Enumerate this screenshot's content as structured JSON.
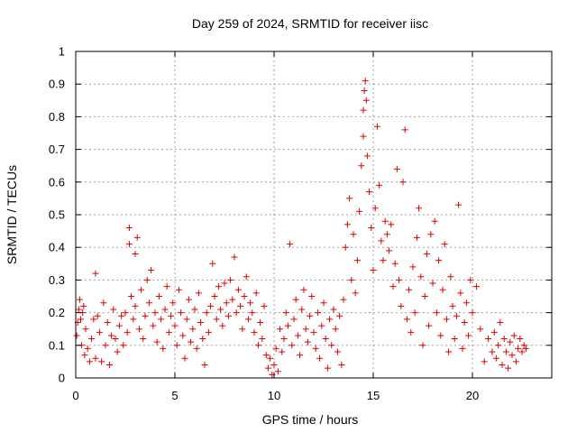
{
  "chart_data": {
    "type": "scatter",
    "title": "Day 259 of 2024, SRMTID for receiver iisc",
    "xlabel": "GPS time / hours",
    "ylabel": "SRMTID / TECUs",
    "xlim": [
      0,
      24
    ],
    "ylim": [
      0,
      1
    ],
    "xticks": [
      0,
      5,
      10,
      15,
      20
    ],
    "xtick_labels": [
      "0",
      "5",
      "10",
      "15",
      "20"
    ],
    "yticks": [
      0,
      0.1,
      0.2,
      0.3,
      0.4,
      0.5,
      0.6,
      0.7,
      0.8,
      0.9,
      1
    ],
    "ytick_labels": [
      "0",
      "0.1",
      "0.2",
      "0.3",
      "0.4",
      "0.5",
      "0.6",
      "0.7",
      "0.8",
      "0.9",
      "1"
    ],
    "grid": true,
    "marker": "plus",
    "marker_color": "#e00000",
    "series": [
      {
        "name": "SRMTID",
        "points": [
          [
            0.05,
            0.13
          ],
          [
            0.1,
            0.17
          ],
          [
            0.15,
            0.21
          ],
          [
            0.2,
            0.24
          ],
          [
            0.25,
            0.18
          ],
          [
            0.3,
            0.1
          ],
          [
            0.35,
            0.2
          ],
          [
            0.4,
            0.22
          ],
          [
            0.45,
            0.07
          ],
          [
            0.5,
            0.15
          ],
          [
            0.6,
            0.09
          ],
          [
            0.7,
            0.05
          ],
          [
            0.8,
            0.12
          ],
          [
            0.9,
            0.18
          ],
          [
            1.0,
            0.06
          ],
          [
            1.0,
            0.32
          ],
          [
            1.1,
            0.19
          ],
          [
            1.2,
            0.14
          ],
          [
            1.3,
            0.05
          ],
          [
            1.4,
            0.23
          ],
          [
            1.5,
            0.1
          ],
          [
            1.6,
            0.17
          ],
          [
            1.7,
            0.04
          ],
          [
            1.8,
            0.13
          ],
          [
            1.9,
            0.21
          ],
          [
            2.0,
            0.12
          ],
          [
            2.1,
            0.08
          ],
          [
            2.2,
            0.16
          ],
          [
            2.3,
            0.19
          ],
          [
            2.4,
            0.1
          ],
          [
            2.5,
            0.2
          ],
          [
            2.6,
            0.14
          ],
          [
            2.7,
            0.46
          ],
          [
            2.7,
            0.41
          ],
          [
            2.8,
            0.25
          ],
          [
            2.9,
            0.18
          ],
          [
            3.0,
            0.22
          ],
          [
            3.0,
            0.38
          ],
          [
            3.1,
            0.43
          ],
          [
            3.2,
            0.15
          ],
          [
            3.3,
            0.27
          ],
          [
            3.4,
            0.12
          ],
          [
            3.5,
            0.19
          ],
          [
            3.6,
            0.3
          ],
          [
            3.7,
            0.23
          ],
          [
            3.8,
            0.33
          ],
          [
            3.9,
            0.16
          ],
          [
            4.0,
            0.2
          ],
          [
            4.1,
            0.11
          ],
          [
            4.2,
            0.25
          ],
          [
            4.3,
            0.18
          ],
          [
            4.4,
            0.09
          ],
          [
            4.5,
            0.21
          ],
          [
            4.6,
            0.28
          ],
          [
            4.7,
            0.14
          ],
          [
            4.8,
            0.19
          ],
          [
            4.9,
            0.23
          ],
          [
            5.0,
            0.16
          ],
          [
            5.1,
            0.1
          ],
          [
            5.2,
            0.27
          ],
          [
            5.3,
            0.2
          ],
          [
            5.4,
            0.13
          ],
          [
            5.5,
            0.06
          ],
          [
            5.6,
            0.18
          ],
          [
            5.7,
            0.24
          ],
          [
            5.8,
            0.11
          ],
          [
            5.9,
            0.15
          ],
          [
            6.0,
            0.21
          ],
          [
            6.1,
            0.09
          ],
          [
            6.2,
            0.26
          ],
          [
            6.3,
            0.17
          ],
          [
            6.4,
            0.12
          ],
          [
            6.5,
            0.04
          ],
          [
            6.6,
            0.2
          ],
          [
            6.7,
            0.14
          ],
          [
            6.8,
            0.22
          ],
          [
            6.9,
            0.35
          ],
          [
            7.0,
            0.25
          ],
          [
            7.1,
            0.18
          ],
          [
            7.2,
            0.28
          ],
          [
            7.3,
            0.21
          ],
          [
            7.4,
            0.16
          ],
          [
            7.5,
            0.29
          ],
          [
            7.6,
            0.23
          ],
          [
            7.7,
            0.19
          ],
          [
            7.8,
            0.3
          ],
          [
            7.9,
            0.24
          ],
          [
            8.0,
            0.37
          ],
          [
            8.1,
            0.2
          ],
          [
            8.2,
            0.27
          ],
          [
            8.3,
            0.22
          ],
          [
            8.4,
            0.15
          ],
          [
            8.5,
            0.25
          ],
          [
            8.6,
            0.31
          ],
          [
            8.7,
            0.18
          ],
          [
            8.8,
            0.23
          ],
          [
            8.9,
            0.2
          ],
          [
            9.0,
            0.14
          ],
          [
            9.1,
            0.26
          ],
          [
            9.2,
            0.1
          ],
          [
            9.3,
            0.17
          ],
          [
            9.4,
            0.12
          ],
          [
            9.5,
            0.22
          ],
          [
            9.6,
            0.07
          ],
          [
            9.7,
            0.03
          ],
          [
            9.8,
            0.06
          ],
          [
            9.9,
            0.01
          ],
          [
            10.0,
            0.04
          ],
          [
            10.1,
            0.09
          ],
          [
            10.2,
            0.02
          ],
          [
            10.3,
            0.15
          ],
          [
            10.4,
            0.08
          ],
          [
            10.5,
            0.12
          ],
          [
            10.6,
            0.2
          ],
          [
            10.7,
            0.16
          ],
          [
            10.8,
            0.41
          ],
          [
            10.9,
            0.1
          ],
          [
            11.0,
            0.18
          ],
          [
            11.1,
            0.24
          ],
          [
            11.2,
            0.13
          ],
          [
            11.3,
            0.07
          ],
          [
            11.4,
            0.21
          ],
          [
            11.5,
            0.27
          ],
          [
            11.6,
            0.15
          ],
          [
            11.7,
            0.11
          ],
          [
            11.8,
            0.19
          ],
          [
            11.9,
            0.25
          ],
          [
            12.0,
            0.14
          ],
          [
            12.1,
            0.09
          ],
          [
            12.2,
            0.2
          ],
          [
            12.3,
            0.06
          ],
          [
            12.4,
            0.16
          ],
          [
            12.5,
            0.23
          ],
          [
            12.6,
            0.12
          ],
          [
            12.7,
            0.03
          ],
          [
            12.8,
            0.18
          ],
          [
            12.9,
            0.1
          ],
          [
            13.0,
            0.21
          ],
          [
            13.1,
            0.15
          ],
          [
            13.2,
            0.08
          ],
          [
            13.3,
            0.19
          ],
          [
            13.4,
            0.04
          ],
          [
            13.5,
            0.24
          ],
          [
            13.6,
            0.4
          ],
          [
            13.7,
            0.47
          ],
          [
            13.8,
            0.55
          ],
          [
            13.9,
            0.3
          ],
          [
            14.0,
            0.44
          ],
          [
            14.1,
            0.26
          ],
          [
            14.2,
            0.36
          ],
          [
            14.3,
            0.51
          ],
          [
            14.4,
            0.65
          ],
          [
            14.5,
            0.74
          ],
          [
            14.5,
            0.82
          ],
          [
            14.55,
            0.88
          ],
          [
            14.6,
            0.91
          ],
          [
            14.65,
            0.85
          ],
          [
            14.7,
            0.68
          ],
          [
            14.8,
            0.57
          ],
          [
            14.9,
            0.46
          ],
          [
            15.0,
            0.33
          ],
          [
            15.1,
            0.52
          ],
          [
            15.2,
            0.77
          ],
          [
            15.3,
            0.59
          ],
          [
            15.4,
            0.42
          ],
          [
            15.5,
            0.36
          ],
          [
            15.6,
            0.48
          ],
          [
            15.7,
            0.44
          ],
          [
            15.8,
            0.39
          ],
          [
            15.9,
            0.47
          ],
          [
            16.0,
            0.28
          ],
          [
            16.1,
            0.35
          ],
          [
            16.2,
            0.64
          ],
          [
            16.3,
            0.3
          ],
          [
            16.4,
            0.22
          ],
          [
            16.5,
            0.6
          ],
          [
            16.6,
            0.76
          ],
          [
            16.7,
            0.18
          ],
          [
            16.8,
            0.27
          ],
          [
            16.9,
            0.14
          ],
          [
            17.0,
            0.34
          ],
          [
            17.1,
            0.2
          ],
          [
            17.2,
            0.43
          ],
          [
            17.3,
            0.52
          ],
          [
            17.4,
            0.31
          ],
          [
            17.5,
            0.1
          ],
          [
            17.6,
            0.25
          ],
          [
            17.7,
            0.38
          ],
          [
            17.8,
            0.16
          ],
          [
            17.9,
            0.44
          ],
          [
            18.0,
            0.29
          ],
          [
            18.1,
            0.48
          ],
          [
            18.2,
            0.2
          ],
          [
            18.3,
            0.36
          ],
          [
            18.4,
            0.13
          ],
          [
            18.5,
            0.27
          ],
          [
            18.6,
            0.41
          ],
          [
            18.7,
            0.18
          ],
          [
            18.8,
            0.08
          ],
          [
            18.9,
            0.31
          ],
          [
            19.0,
            0.22
          ],
          [
            19.1,
            0.12
          ],
          [
            19.2,
            0.19
          ],
          [
            19.3,
            0.53
          ],
          [
            19.4,
            0.26
          ],
          [
            19.5,
            0.09
          ],
          [
            19.6,
            0.17
          ],
          [
            19.7,
            0.23
          ],
          [
            19.8,
            0.13
          ],
          [
            19.9,
            0.3
          ],
          [
            20.0,
            0.2
          ],
          [
            20.2,
            0.28
          ],
          [
            20.4,
            0.15
          ],
          [
            20.6,
            0.05
          ],
          [
            20.8,
            0.12
          ],
          [
            21.0,
            0.08
          ],
          [
            21.1,
            0.14
          ],
          [
            21.2,
            0.06
          ],
          [
            21.3,
            0.1
          ],
          [
            21.4,
            0.17
          ],
          [
            21.5,
            0.04
          ],
          [
            21.6,
            0.12
          ],
          [
            21.7,
            0.08
          ],
          [
            21.8,
            0.03
          ],
          [
            21.9,
            0.11
          ],
          [
            22.0,
            0.07
          ],
          [
            22.1,
            0.13
          ],
          [
            22.2,
            0.05
          ],
          [
            22.3,
            0.09
          ],
          [
            22.4,
            0.12
          ],
          [
            22.5,
            0.08
          ],
          [
            22.6,
            0.1
          ],
          [
            22.7,
            0.09
          ]
        ]
      }
    ]
  }
}
